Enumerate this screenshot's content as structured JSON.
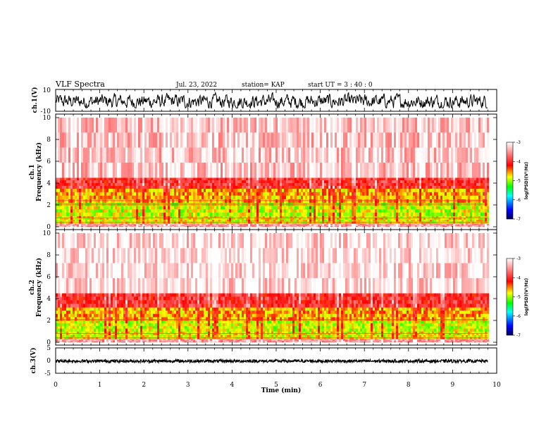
{
  "header": {
    "title": "VLF Spectra",
    "date": "Jul. 23, 2022",
    "station": "station= KAP",
    "start": "start UT =   3 : 40 : 0"
  },
  "chart_data": [
    {
      "type": "line",
      "name": "ch1-waveform",
      "ylabel": "ch.1(V)",
      "ylim": [
        -10,
        10
      ],
      "yticks": [
        "10",
        "-10"
      ],
      "x_range_min": [
        0,
        9.8
      ],
      "amplitude_range_v": [
        -7,
        7
      ]
    },
    {
      "type": "heatmap",
      "name": "ch1-spectrogram",
      "ylabel": "ch.1\nFrequency (kHz)",
      "ylim": [
        0,
        10
      ],
      "yticks": [
        "0",
        "2",
        "4",
        "6",
        "8",
        "10"
      ],
      "x_range_min": [
        0,
        9.8
      ],
      "bands": [
        {
          "f_khz": [
            0,
            0.3
          ],
          "level": -3.5
        },
        {
          "f_khz": [
            0.3,
            1.0
          ],
          "level": -4.8
        },
        {
          "f_khz": [
            1.0,
            2.2
          ],
          "level": -4.9
        },
        {
          "f_khz": [
            2.2,
            3.5
          ],
          "level": -4.6
        },
        {
          "f_khz": [
            3.5,
            4.5
          ],
          "level": -4.0
        },
        {
          "f_khz": [
            4.5,
            10
          ],
          "level": -3.3
        }
      ],
      "lines_khz": [
        0.4,
        0.8,
        2.0,
        2.1,
        2.4
      ]
    },
    {
      "type": "heatmap",
      "name": "ch2-spectrogram",
      "ylabel": "ch.2\nFrequency (kHz)",
      "ylim": [
        0,
        10
      ],
      "yticks": [
        "0",
        "2",
        "4",
        "6",
        "8",
        "10"
      ],
      "x_range_min": [
        0,
        9.8
      ],
      "bands": [
        {
          "f_khz": [
            0,
            0.3
          ],
          "level": -3.5
        },
        {
          "f_khz": [
            0.3,
            1.0
          ],
          "level": -4.8
        },
        {
          "f_khz": [
            1.0,
            2.0
          ],
          "level": -4.9
        },
        {
          "f_khz": [
            2.0,
            3.2
          ],
          "level": -4.6
        },
        {
          "f_khz": [
            3.2,
            4.5
          ],
          "level": -4.0
        },
        {
          "f_khz": [
            4.5,
            10
          ],
          "level": -3.2
        }
      ],
      "lines_khz": [
        0.4,
        0.8,
        2.0,
        2.1
      ]
    },
    {
      "type": "line",
      "name": "ch3-waveform",
      "ylabel": "ch.3(V)",
      "ylim": [
        -5,
        5
      ],
      "yticks": [
        "5",
        "0",
        "-5"
      ],
      "x_range_min": [
        0,
        9.8
      ],
      "amplitude_range_v": [
        -0.8,
        0.4
      ]
    }
  ],
  "xaxis": {
    "label": "Time (min)",
    "ticks": [
      "0",
      "1",
      "2",
      "3",
      "4",
      "5",
      "6",
      "7",
      "8",
      "9",
      "10"
    ],
    "xlim": [
      0,
      10
    ]
  },
  "colorbar": {
    "label": "log(PSD)(V²/Hz)",
    "range": [
      -7,
      -3
    ],
    "ticks": [
      "-3",
      "-4",
      "-5",
      "-6",
      "-7"
    ],
    "colors": [
      "#000080",
      "#0000ff",
      "#00ffff",
      "#00ff00",
      "#ffff00",
      "#ff0000",
      "#ffffff"
    ]
  }
}
